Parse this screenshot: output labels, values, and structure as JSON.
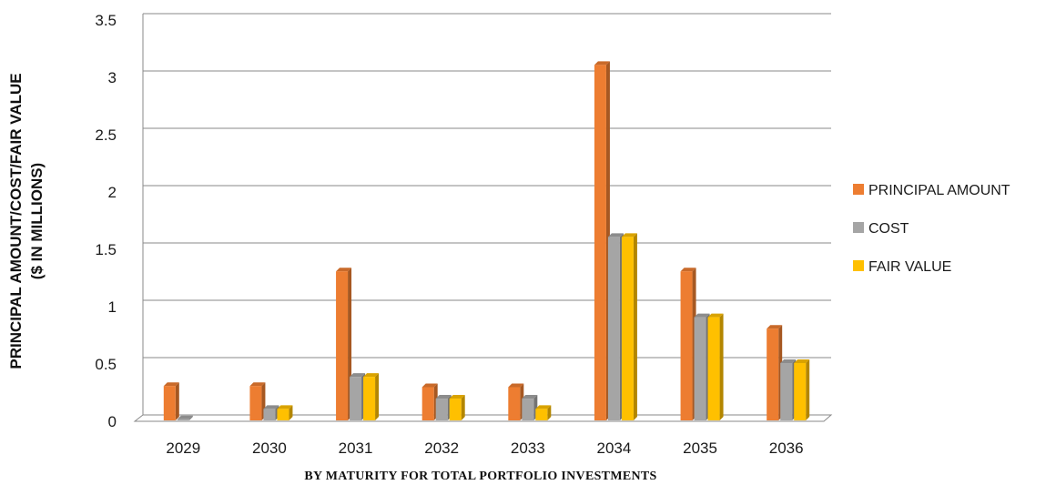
{
  "chart_data": {
    "type": "bar",
    "title": "",
    "xlabel": "BY MATURITY FOR TOTAL PORTFOLIO INVESTMENTS",
    "ylabel_line1": "PRINCIPAL AMOUNT/COST/FAIR VALUE",
    "ylabel_line2": "($ IN MILLIONS)",
    "ylim": [
      0,
      3.5
    ],
    "yticks": [
      "0",
      "0.5",
      "1",
      "1.5",
      "2",
      "2.5",
      "3",
      "3.5"
    ],
    "grid": true,
    "legend_position": "right",
    "categories": [
      "2029",
      "2030",
      "2031",
      "2032",
      "2033",
      "2034",
      "2035",
      "2036"
    ],
    "series": [
      {
        "name": "PRINCIPAL AMOUNT",
        "color": "#ED7D31",
        "values": [
          0.3,
          0.3,
          1.3,
          0.29,
          0.29,
          3.1,
          1.3,
          0.8
        ]
      },
      {
        "name": "COST",
        "color": "#A5A5A5",
        "values": [
          0.01,
          0.1,
          0.38,
          0.19,
          0.19,
          1.6,
          0.9,
          0.5
        ]
      },
      {
        "name": "FAIR VALUE",
        "color": "#FFC000",
        "values": [
          0.0,
          0.1,
          0.38,
          0.19,
          0.1,
          1.6,
          0.9,
          0.5
        ]
      }
    ]
  }
}
